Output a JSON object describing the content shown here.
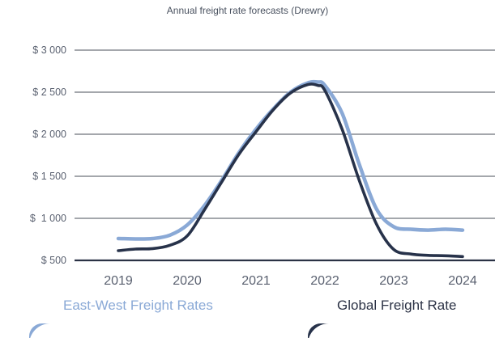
{
  "chart_data": {
    "type": "line",
    "title": "Annual freight rate forecasts (Drewry)",
    "xlabel": "",
    "ylabel": "",
    "x": [
      2019,
      2019.25,
      2019.5,
      2019.75,
      2020,
      2020.25,
      2020.5,
      2020.75,
      2021,
      2021.25,
      2021.5,
      2021.75,
      2021.9,
      2022,
      2022.25,
      2022.5,
      2022.75,
      2023,
      2023.25,
      2023.5,
      2023.75,
      2024
    ],
    "xticks": [
      "2019",
      "2020",
      "2021",
      "2022",
      "2023",
      "2024"
    ],
    "yticks": [
      {
        "value": 500,
        "label": "$ 500"
      },
      {
        "value": 1000,
        "label": "$  1 000"
      },
      {
        "value": 1500,
        "label": "$ 1 500"
      },
      {
        "value": 2000,
        "label": "$ 2 000"
      },
      {
        "value": 2500,
        "label": "$ 2 500"
      },
      {
        "value": 3000,
        "label": "$ 3 000"
      }
    ],
    "ylim": [
      500,
      3000
    ],
    "grid": true,
    "legend_position": "bottom",
    "series": [
      {
        "name": "East-West Freight Rates",
        "color": "#8aa9d6",
        "values": [
          760,
          755,
          760,
          800,
          920,
          1150,
          1450,
          1780,
          2060,
          2300,
          2500,
          2610,
          2620,
          2580,
          2250,
          1640,
          1110,
          900,
          870,
          860,
          870,
          860
        ]
      },
      {
        "name": "Global Freight Rate",
        "color": "#27324a",
        "values": [
          615,
          635,
          640,
          680,
          790,
          1100,
          1430,
          1760,
          2030,
          2290,
          2490,
          2590,
          2580,
          2520,
          2060,
          1450,
          930,
          630,
          575,
          560,
          555,
          545
        ]
      }
    ]
  }
}
